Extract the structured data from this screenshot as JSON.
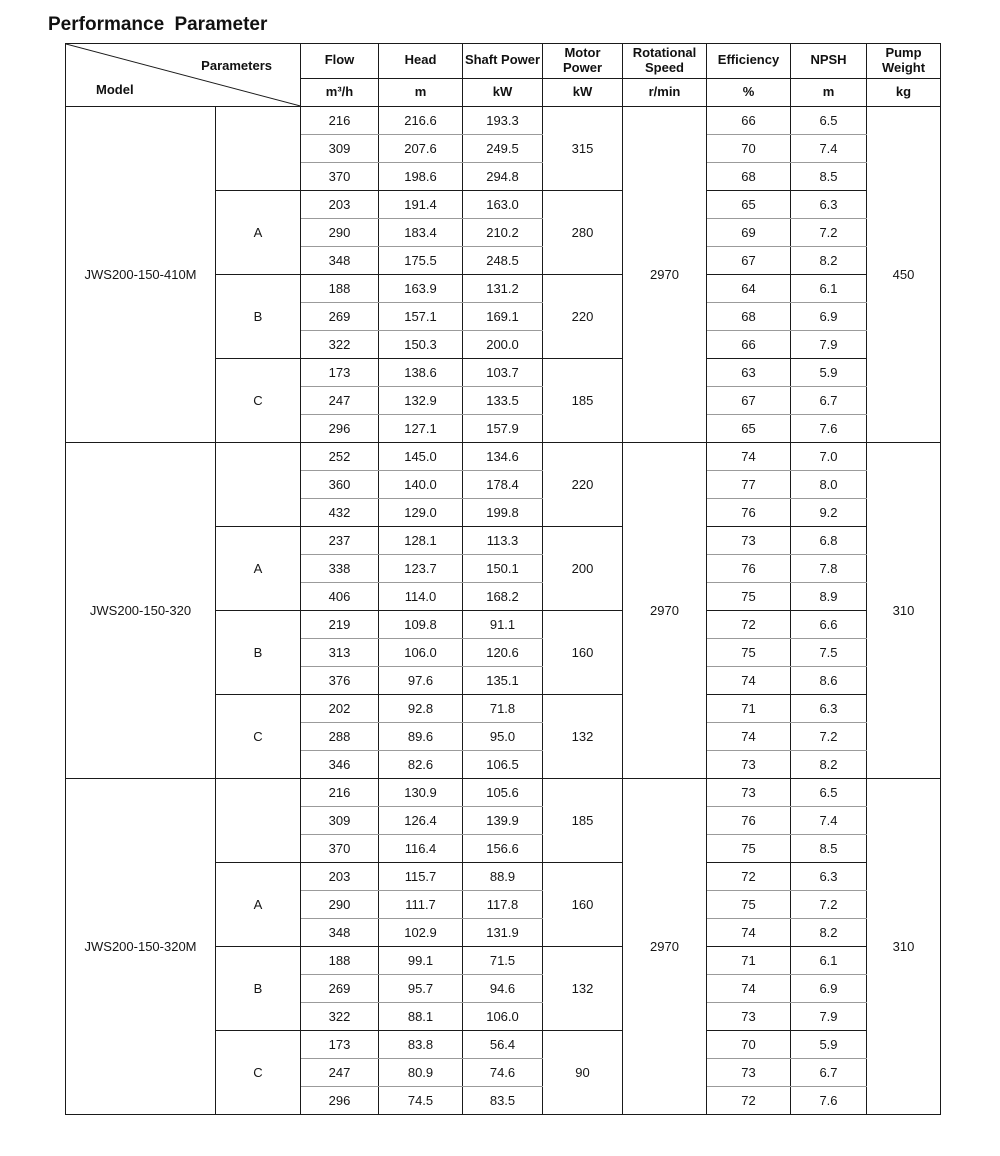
{
  "title": "Performance Parameter",
  "header": {
    "corner_top_right": "Parameters",
    "corner_bottom_left": "Model",
    "columns": [
      {
        "label": "Flow",
        "unit": "m³/h"
      },
      {
        "label": "Head",
        "unit": "m"
      },
      {
        "label": "Shaft Power",
        "unit": "kW"
      },
      {
        "label": "Motor Power",
        "unit": "kW"
      },
      {
        "label": "Rotational Speed",
        "unit": "r/min"
      },
      {
        "label": "Efficiency",
        "unit": "%"
      },
      {
        "label": "NPSH",
        "unit": "m"
      },
      {
        "label": "Pump Weight",
        "unit": "kg"
      }
    ]
  },
  "colors": {
    "border_dark": "#1a1a1a",
    "border_light": "#9b9b9b",
    "text": "#151515"
  },
  "models": [
    {
      "model": "JWS200-150-410M",
      "rotational_speed": "2970",
      "pump_weight": "450",
      "groups": [
        {
          "trim": "",
          "motor_power": "315",
          "rows": [
            {
              "flow": "216",
              "head": "216.6",
              "shaft_power": "193.3",
              "efficiency": "66",
              "npsh": "6.5"
            },
            {
              "flow": "309",
              "head": "207.6",
              "shaft_power": "249.5",
              "efficiency": "70",
              "npsh": "7.4"
            },
            {
              "flow": "370",
              "head": "198.6",
              "shaft_power": "294.8",
              "efficiency": "68",
              "npsh": "8.5"
            }
          ]
        },
        {
          "trim": "A",
          "motor_power": "280",
          "rows": [
            {
              "flow": "203",
              "head": "191.4",
              "shaft_power": "163.0",
              "efficiency": "65",
              "npsh": "6.3"
            },
            {
              "flow": "290",
              "head": "183.4",
              "shaft_power": "210.2",
              "efficiency": "69",
              "npsh": "7.2"
            },
            {
              "flow": "348",
              "head": "175.5",
              "shaft_power": "248.5",
              "efficiency": "67",
              "npsh": "8.2"
            }
          ]
        },
        {
          "trim": "B",
          "motor_power": "220",
          "rows": [
            {
              "flow": "188",
              "head": "163.9",
              "shaft_power": "131.2",
              "efficiency": "64",
              "npsh": "6.1"
            },
            {
              "flow": "269",
              "head": "157.1",
              "shaft_power": "169.1",
              "efficiency": "68",
              "npsh": "6.9"
            },
            {
              "flow": "322",
              "head": "150.3",
              "shaft_power": "200.0",
              "efficiency": "66",
              "npsh": "7.9"
            }
          ]
        },
        {
          "trim": "C",
          "motor_power": "185",
          "rows": [
            {
              "flow": "173",
              "head": "138.6",
              "shaft_power": "103.7",
              "efficiency": "63",
              "npsh": "5.9"
            },
            {
              "flow": "247",
              "head": "132.9",
              "shaft_power": "133.5",
              "efficiency": "67",
              "npsh": "6.7"
            },
            {
              "flow": "296",
              "head": "127.1",
              "shaft_power": "157.9",
              "efficiency": "65",
              "npsh": "7.6"
            }
          ]
        }
      ]
    },
    {
      "model": "JWS200-150-320",
      "rotational_speed": "2970",
      "pump_weight": "310",
      "groups": [
        {
          "trim": "",
          "motor_power": "220",
          "rows": [
            {
              "flow": "252",
              "head": "145.0",
              "shaft_power": "134.6",
              "efficiency": "74",
              "npsh": "7.0"
            },
            {
              "flow": "360",
              "head": "140.0",
              "shaft_power": "178.4",
              "efficiency": "77",
              "npsh": "8.0"
            },
            {
              "flow": "432",
              "head": "129.0",
              "shaft_power": "199.8",
              "efficiency": "76",
              "npsh": "9.2"
            }
          ]
        },
        {
          "trim": "A",
          "motor_power": "200",
          "rows": [
            {
              "flow": "237",
              "head": "128.1",
              "shaft_power": "113.3",
              "efficiency": "73",
              "npsh": "6.8"
            },
            {
              "flow": "338",
              "head": "123.7",
              "shaft_power": "150.1",
              "efficiency": "76",
              "npsh": "7.8"
            },
            {
              "flow": "406",
              "head": "114.0",
              "shaft_power": "168.2",
              "efficiency": "75",
              "npsh": "8.9"
            }
          ]
        },
        {
          "trim": "B",
          "motor_power": "160",
          "rows": [
            {
              "flow": "219",
              "head": "109.8",
              "shaft_power": "91.1",
              "efficiency": "72",
              "npsh": "6.6"
            },
            {
              "flow": "313",
              "head": "106.0",
              "shaft_power": "120.6",
              "efficiency": "75",
              "npsh": "7.5"
            },
            {
              "flow": "376",
              "head": "97.6",
              "shaft_power": "135.1",
              "efficiency": "74",
              "npsh": "8.6"
            }
          ]
        },
        {
          "trim": "C",
          "motor_power": "132",
          "rows": [
            {
              "flow": "202",
              "head": "92.8",
              "shaft_power": "71.8",
              "efficiency": "71",
              "npsh": "6.3"
            },
            {
              "flow": "288",
              "head": "89.6",
              "shaft_power": "95.0",
              "efficiency": "74",
              "npsh": "7.2"
            },
            {
              "flow": "346",
              "head": "82.6",
              "shaft_power": "106.5",
              "efficiency": "73",
              "npsh": "8.2"
            }
          ]
        }
      ]
    },
    {
      "model": "JWS200-150-320M",
      "rotational_speed": "2970",
      "pump_weight": "310",
      "groups": [
        {
          "trim": "",
          "motor_power": "185",
          "rows": [
            {
              "flow": "216",
              "head": "130.9",
              "shaft_power": "105.6",
              "efficiency": "73",
              "npsh": "6.5"
            },
            {
              "flow": "309",
              "head": "126.4",
              "shaft_power": "139.9",
              "efficiency": "76",
              "npsh": "7.4"
            },
            {
              "flow": "370",
              "head": "116.4",
              "shaft_power": "156.6",
              "efficiency": "75",
              "npsh": "8.5"
            }
          ]
        },
        {
          "trim": "A",
          "motor_power": "160",
          "rows": [
            {
              "flow": "203",
              "head": "115.7",
              "shaft_power": "88.9",
              "efficiency": "72",
              "npsh": "6.3"
            },
            {
              "flow": "290",
              "head": "111.7",
              "shaft_power": "117.8",
              "efficiency": "75",
              "npsh": "7.2"
            },
            {
              "flow": "348",
              "head": "102.9",
              "shaft_power": "131.9",
              "efficiency": "74",
              "npsh": "8.2"
            }
          ]
        },
        {
          "trim": "B",
          "motor_power": "132",
          "rows": [
            {
              "flow": "188",
              "head": "99.1",
              "shaft_power": "71.5",
              "efficiency": "71",
              "npsh": "6.1"
            },
            {
              "flow": "269",
              "head": "95.7",
              "shaft_power": "94.6",
              "efficiency": "74",
              "npsh": "6.9"
            },
            {
              "flow": "322",
              "head": "88.1",
              "shaft_power": "106.0",
              "efficiency": "73",
              "npsh": "7.9"
            }
          ]
        },
        {
          "trim": "C",
          "motor_power": "90",
          "rows": [
            {
              "flow": "173",
              "head": "83.8",
              "shaft_power": "56.4",
              "efficiency": "70",
              "npsh": "5.9"
            },
            {
              "flow": "247",
              "head": "80.9",
              "shaft_power": "74.6",
              "efficiency": "73",
              "npsh": "6.7"
            },
            {
              "flow": "296",
              "head": "74.5",
              "shaft_power": "83.5",
              "efficiency": "72",
              "npsh": "7.6"
            }
          ]
        }
      ]
    }
  ]
}
